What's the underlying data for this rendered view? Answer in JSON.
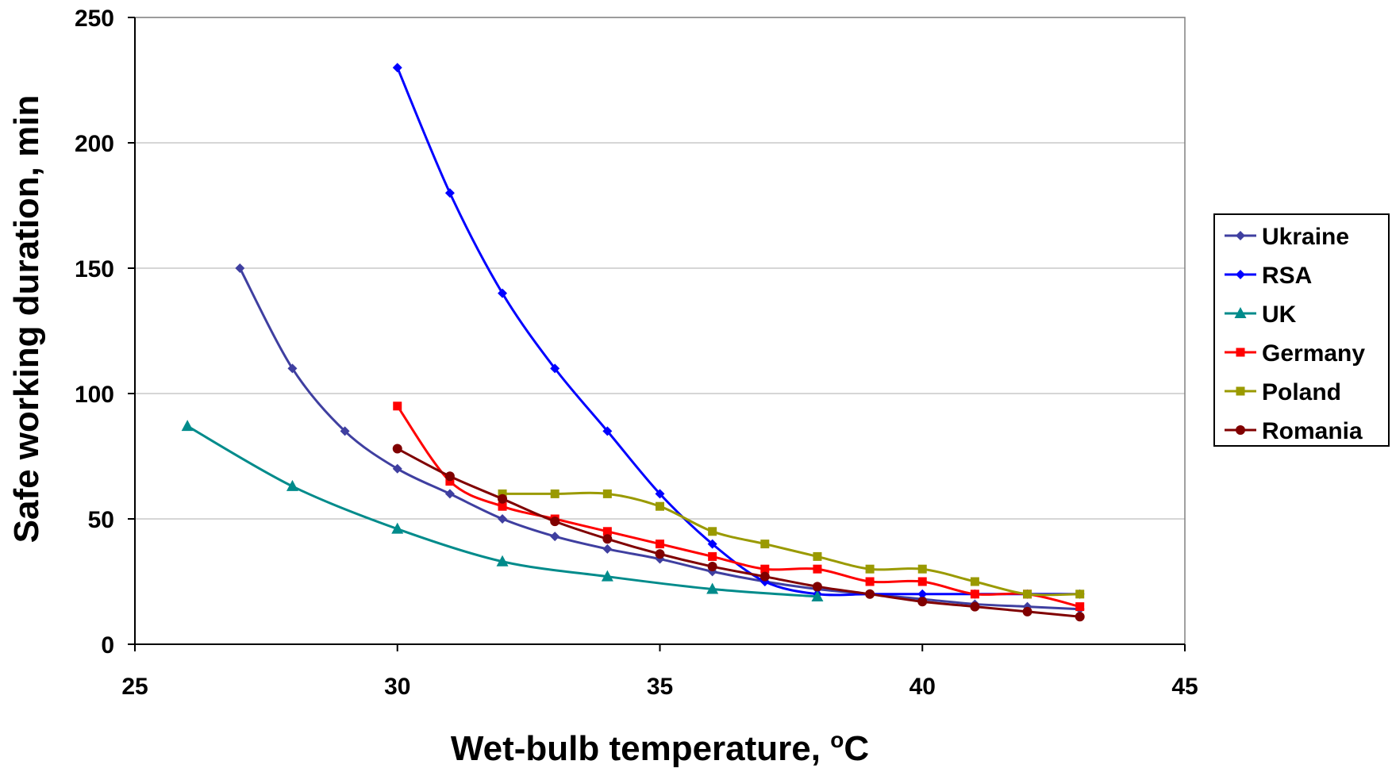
{
  "chart_data": {
    "type": "line",
    "xlabel": "Wet-bulb temperature, ",
    "xlabel_sup": "o",
    "xlabel_unit": "C",
    "ylabel": "Safe working duration, min",
    "xlim": [
      25,
      45
    ],
    "ylim": [
      0,
      250
    ],
    "xticks": [
      25,
      30,
      35,
      40,
      45
    ],
    "yticks": [
      0,
      50,
      100,
      150,
      200,
      250
    ],
    "grid": "horizontal",
    "legend_position": "right",
    "series": [
      {
        "name": "Ukraine",
        "color": "#3F3FA0",
        "marker": "diamond",
        "x": [
          27,
          28,
          29,
          30,
          31,
          32,
          33,
          34,
          35,
          36,
          37,
          38,
          39,
          40,
          41,
          42,
          43
        ],
        "y": [
          150,
          110,
          85,
          70,
          60,
          50,
          43,
          38,
          34,
          29,
          25,
          22,
          20,
          18,
          16,
          15,
          14
        ]
      },
      {
        "name": "RSA",
        "color": "#0000FF",
        "marker": "diamond",
        "x": [
          30,
          31,
          32,
          33,
          34,
          35,
          36,
          37,
          38,
          39,
          40,
          41,
          42,
          43
        ],
        "y": [
          230,
          180,
          140,
          110,
          85,
          60,
          40,
          25,
          20,
          20,
          20,
          20,
          20,
          20
        ]
      },
      {
        "name": "UK",
        "color": "#008B8B",
        "marker": "triangle",
        "x": [
          26,
          28,
          30,
          32,
          34,
          36,
          38
        ],
        "y": [
          87,
          63,
          46,
          33,
          27,
          22,
          19
        ]
      },
      {
        "name": "Germany",
        "color": "#FF0000",
        "marker": "square",
        "x": [
          30,
          31,
          32,
          33,
          34,
          35,
          36,
          37,
          38,
          39,
          40,
          41,
          42,
          43
        ],
        "y": [
          95,
          65,
          55,
          50,
          45,
          40,
          35,
          30,
          30,
          25,
          25,
          20,
          20,
          15
        ]
      },
      {
        "name": "Poland",
        "color": "#9A9A00",
        "marker": "square",
        "x": [
          32,
          33,
          34,
          35,
          36,
          37,
          38,
          39,
          40,
          41,
          42,
          43
        ],
        "y": [
          60,
          60,
          60,
          55,
          45,
          40,
          35,
          30,
          30,
          25,
          20,
          20
        ]
      },
      {
        "name": "Romania",
        "color": "#800000",
        "marker": "circle",
        "x": [
          30,
          31,
          32,
          33,
          34,
          35,
          36,
          37,
          38,
          39,
          40,
          41,
          42,
          43
        ],
        "y": [
          78,
          67,
          58,
          49,
          42,
          36,
          31,
          27,
          23,
          20,
          17,
          15,
          13,
          11
        ]
      }
    ]
  }
}
